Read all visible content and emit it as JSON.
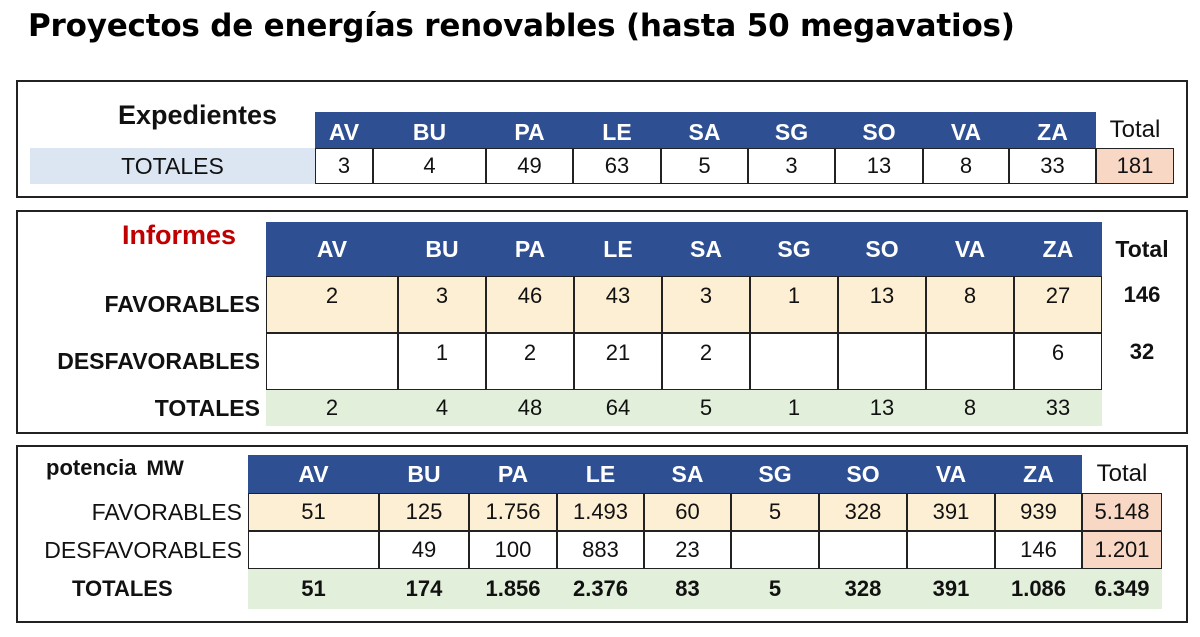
{
  "title": "Proyectos de energías renovables (hasta 50 megavatios)",
  "colors": {
    "header_bg": "#2f4f93",
    "favorable_bg": "#fdefd3",
    "totales_bg": "#e2efda",
    "total_highlight_bg": "#f8d7c4",
    "expedientes_label_bg": "#dce6f2",
    "informes_label": "#c00000"
  },
  "provinces": [
    "AV",
    "BU",
    "PA",
    "LE",
    "SA",
    "SG",
    "SO",
    "VA",
    "ZA"
  ],
  "expedientes": {
    "label": "Expedientes",
    "total_header": "Total",
    "row_label": "TOTALES",
    "values": [
      "3",
      "4",
      "49",
      "63",
      "5",
      "3",
      "13",
      "8",
      "33"
    ],
    "total": "181"
  },
  "informes": {
    "label": "Informes",
    "total_header": "Total",
    "rows": [
      {
        "label": "FAVORABLES",
        "values": [
          "2",
          "3",
          "46",
          "43",
          "3",
          "1",
          "13",
          "8",
          "27"
        ],
        "total": "146"
      },
      {
        "label": "DESFAVORABLES",
        "values": [
          "",
          "1",
          "2",
          "21",
          "2",
          "",
          "",
          "",
          "6"
        ],
        "total": "32"
      },
      {
        "label": "TOTALES",
        "values": [
          "2",
          "4",
          "48",
          "64",
          "5",
          "1",
          "13",
          "8",
          "33"
        ],
        "total": ""
      }
    ]
  },
  "potencia": {
    "label": "potencia",
    "unit": "MW",
    "total_header": "Total",
    "rows": [
      {
        "label": "FAVORABLES",
        "values": [
          "51",
          "125",
          "1.756",
          "1.493",
          "60",
          "5",
          "328",
          "391",
          "939"
        ],
        "total": "5.148"
      },
      {
        "label": "DESFAVORABLES",
        "values": [
          "",
          "49",
          "100",
          "883",
          "23",
          "",
          "",
          "",
          "146"
        ],
        "total": "1.201"
      },
      {
        "label": "TOTALES",
        "values": [
          "51",
          "174",
          "1.856",
          "2.376",
          "83",
          "5",
          "328",
          "391",
          "1.086"
        ],
        "total": "6.349"
      }
    ]
  }
}
